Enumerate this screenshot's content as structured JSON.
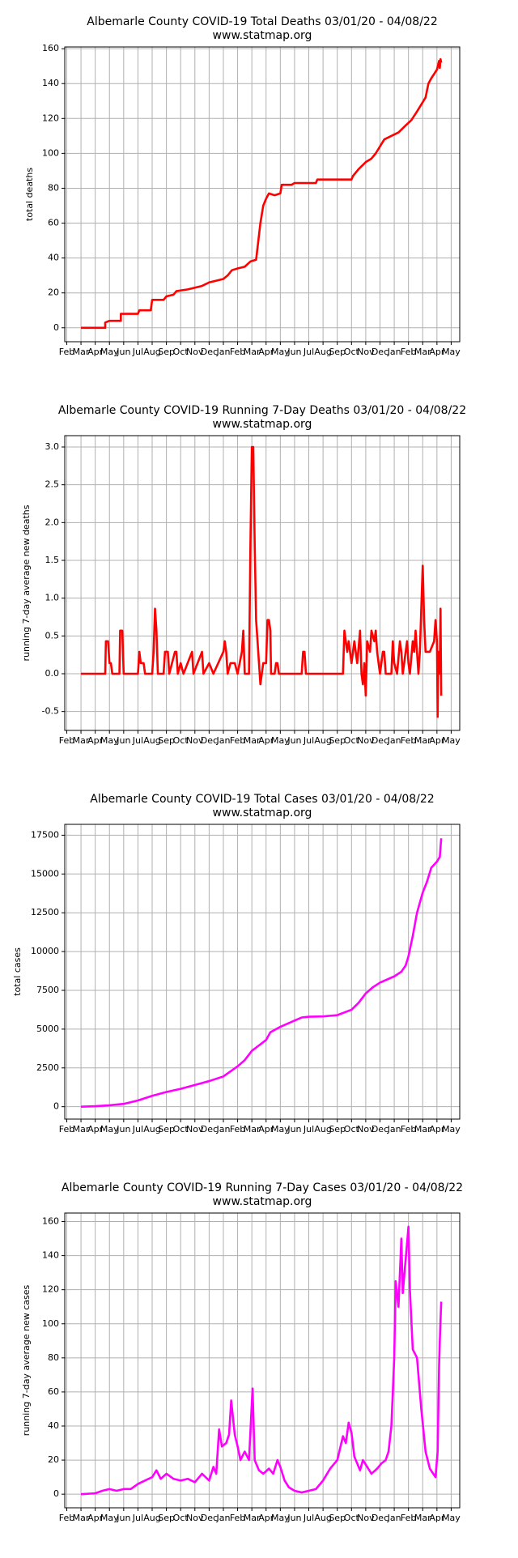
{
  "chart_data": [
    {
      "type": "line",
      "title": "Albemarle County COVID-19 Total Deaths 03/01/20 - 04/08/22",
      "subtitle": "www.statmap.org",
      "ylabel": "total deaths",
      "color": "#ff0000",
      "grid": true,
      "x": [
        1,
        2.7,
        2.7,
        3,
        3.8,
        3.8,
        5,
        5.1,
        5.9,
        6,
        6.8,
        7,
        7.5,
        7.7,
        8.5,
        9,
        9.5,
        10,
        10.5,
        11,
        11.3,
        11.6,
        12,
        12.5,
        12.9,
        13.3,
        13.6,
        13.8,
        14,
        14.2,
        14.6,
        15,
        15.1,
        15.8,
        16,
        17.5,
        17.6,
        19,
        20,
        20.1,
        20.5,
        21,
        21.4,
        21.7,
        22,
        22.3,
        22.8,
        23.3,
        23.8,
        24.2,
        24.6,
        24.9,
        25.2,
        25.4,
        25.6,
        26,
        26.15,
        26.2,
        26.25,
        26.3
      ],
      "values": [
        0,
        0,
        3,
        4,
        4,
        8,
        8,
        10,
        10,
        16,
        16,
        18,
        19,
        21,
        22,
        23,
        24,
        26,
        27,
        28,
        30,
        33,
        34,
        35,
        38,
        39,
        60,
        70,
        74,
        77,
        76,
        77,
        82,
        82,
        83,
        83,
        85,
        85,
        85,
        87,
        91,
        95,
        97,
        100,
        104,
        108,
        110,
        112,
        116,
        119,
        124,
        128,
        132,
        140,
        143,
        148,
        153,
        149,
        154,
        152
      ],
      "xlim": [
        -0.14,
        27.6
      ],
      "xticks": [
        {
          "value": 0,
          "label": "Feb"
        },
        {
          "value": 1,
          "label": "Mar"
        },
        {
          "value": 2,
          "label": "Apr"
        },
        {
          "value": 3,
          "label": "May"
        },
        {
          "value": 4,
          "label": "Jun"
        },
        {
          "value": 5,
          "label": "Jul"
        },
        {
          "value": 6,
          "label": "Aug"
        },
        {
          "value": 7,
          "label": "Sep"
        },
        {
          "value": 8,
          "label": "Oct"
        },
        {
          "value": 9,
          "label": "Nov"
        },
        {
          "value": 10,
          "label": "Dec"
        },
        {
          "value": 11,
          "label": "Jan"
        },
        {
          "value": 12,
          "label": "Feb"
        },
        {
          "value": 13,
          "label": "Mar"
        },
        {
          "value": 14,
          "label": "Apr"
        },
        {
          "value": 15,
          "label": "May"
        },
        {
          "value": 16,
          "label": "Jun"
        },
        {
          "value": 17,
          "label": "Jul"
        },
        {
          "value": 18,
          "label": "Aug"
        },
        {
          "value": 19,
          "label": "Sep"
        },
        {
          "value": 20,
          "label": "Oct"
        },
        {
          "value": 21,
          "label": "Nov"
        },
        {
          "value": 22,
          "label": "Dec"
        },
        {
          "value": 23,
          "label": "Jan"
        },
        {
          "value": 24,
          "label": "Feb"
        },
        {
          "value": 25,
          "label": "Mar"
        },
        {
          "value": 26,
          "label": "Apr"
        },
        {
          "value": 27,
          "label": "May"
        }
      ],
      "ylim": [
        -8,
        161
      ],
      "yticks": [
        0,
        20,
        40,
        60,
        80,
        100,
        120,
        140,
        160
      ]
    },
    {
      "type": "line",
      "title": "Albemarle County COVID-19 Running 7-Day Deaths 03/01/20 - 04/08/22",
      "subtitle": "www.statmap.org",
      "ylabel": "running 7-day average new deaths",
      "color": "#ff0000",
      "grid": true,
      "x": [
        1,
        2.7,
        2.75,
        2.9,
        3,
        3.1,
        3.2,
        3.7,
        3.75,
        3.9,
        4,
        5,
        5.1,
        5.2,
        5.4,
        5.5,
        6,
        6.1,
        6.2,
        6.3,
        6.4,
        6.8,
        6.9,
        7.1,
        7.2,
        7.6,
        7.7,
        7.8,
        8,
        8.2,
        8.8,
        8.9,
        9.5,
        9.6,
        10,
        10.3,
        11,
        11.1,
        11.2,
        11.3,
        11.5,
        11.8,
        12,
        12.3,
        12.4,
        12.5,
        12.8,
        12.9,
        13,
        13.1,
        13.2,
        13.3,
        13.4,
        13.6,
        13.8,
        14,
        14.1,
        14.2,
        14.3,
        14.35,
        14.6,
        14.7,
        14.8,
        14.9,
        16.5,
        16.6,
        16.7,
        16.8,
        19.4,
        19.5,
        19.7,
        19.8,
        20,
        20.2,
        20.4,
        20.6,
        20.7,
        20.8,
        20.9,
        21,
        21.1,
        21.3,
        21.4,
        21.6,
        21.7,
        21.8,
        21.9,
        22,
        22.2,
        22.3,
        22.4,
        22.8,
        22.9,
        23,
        23.2,
        23.4,
        23.5,
        23.6,
        23.9,
        24,
        24.1,
        24.3,
        24.4,
        24.5,
        24.6,
        24.7,
        24.8,
        24.9,
        25,
        25.1,
        25.2,
        25.5,
        25.8,
        25.9,
        26,
        26.05,
        26.1,
        26.2,
        26.25,
        26.3
      ],
      "values": [
        0,
        0,
        0.43,
        0.43,
        0.14,
        0.14,
        0,
        0,
        0.57,
        0.57,
        0,
        0,
        0.29,
        0.14,
        0.14,
        0,
        0,
        0.29,
        0.86,
        0.57,
        0,
        0,
        0.29,
        0.29,
        0,
        0.29,
        0.29,
        0,
        0.14,
        0,
        0.29,
        0,
        0.29,
        0,
        0.14,
        0,
        0.29,
        0.43,
        0.29,
        0,
        0.14,
        0.14,
        0,
        0.29,
        0.57,
        0,
        0,
        1.71,
        3,
        3,
        1.71,
        0.71,
        0.43,
        -0.14,
        0.14,
        0.14,
        0.71,
        0.71,
        0.57,
        0,
        0,
        0.14,
        0.14,
        0,
        0,
        0.29,
        0.29,
        0,
        0,
        0.57,
        0.29,
        0.43,
        0.14,
        0.43,
        0.14,
        0.57,
        0,
        -0.14,
        0.14,
        -0.29,
        0.43,
        0.29,
        0.57,
        0.43,
        0.57,
        0.29,
        0.14,
        0,
        0.29,
        0.29,
        0,
        0,
        0.43,
        0.14,
        0,
        0.43,
        0.29,
        0,
        0.43,
        0.14,
        0,
        0.43,
        0.29,
        0.57,
        0.29,
        0,
        0.29,
        0.86,
        1.43,
        0.71,
        0.29,
        0.29,
        0.43,
        0.71,
        0.43,
        -0.57,
        0.29,
        0,
        0.86,
        -0.29
      ],
      "xlim": [
        -0.14,
        27.6
      ],
      "xticks": [
        {
          "value": 0,
          "label": "Feb"
        },
        {
          "value": 1,
          "label": "Mar"
        },
        {
          "value": 2,
          "label": "Apr"
        },
        {
          "value": 3,
          "label": "May"
        },
        {
          "value": 4,
          "label": "Jun"
        },
        {
          "value": 5,
          "label": "Jul"
        },
        {
          "value": 6,
          "label": "Aug"
        },
        {
          "value": 7,
          "label": "Sep"
        },
        {
          "value": 8,
          "label": "Oct"
        },
        {
          "value": 9,
          "label": "Nov"
        },
        {
          "value": 10,
          "label": "Dec"
        },
        {
          "value": 11,
          "label": "Jan"
        },
        {
          "value": 12,
          "label": "Feb"
        },
        {
          "value": 13,
          "label": "Mar"
        },
        {
          "value": 14,
          "label": "Apr"
        },
        {
          "value": 15,
          "label": "May"
        },
        {
          "value": 16,
          "label": "Jun"
        },
        {
          "value": 17,
          "label": "Jul"
        },
        {
          "value": 18,
          "label": "Aug"
        },
        {
          "value": 19,
          "label": "Sep"
        },
        {
          "value": 20,
          "label": "Oct"
        },
        {
          "value": 21,
          "label": "Nov"
        },
        {
          "value": 22,
          "label": "Dec"
        },
        {
          "value": 23,
          "label": "Jan"
        },
        {
          "value": 24,
          "label": "Feb"
        },
        {
          "value": 25,
          "label": "Mar"
        },
        {
          "value": 26,
          "label": "Apr"
        },
        {
          "value": 27,
          "label": "May"
        }
      ],
      "ylim": [
        -0.75,
        3.15
      ],
      "yticks": [
        {
          "value": -0.5,
          "label": "-0.5"
        },
        {
          "value": 0,
          "label": "0.0"
        },
        {
          "value": 0.5,
          "label": "0.5"
        },
        {
          "value": 1,
          "label": "1.0"
        },
        {
          "value": 1.5,
          "label": "1.5"
        },
        {
          "value": 2,
          "label": "2.0"
        },
        {
          "value": 2.5,
          "label": "2.5"
        },
        {
          "value": 3,
          "label": "3.0"
        }
      ]
    },
    {
      "type": "line",
      "title": "Albemarle County COVID-19 Total Cases 03/01/20 - 04/08/22",
      "subtitle": "www.statmap.org",
      "ylabel": "total cases",
      "color": "#ff00ff",
      "grid": true,
      "x": [
        1,
        2,
        3,
        4,
        5,
        6,
        7,
        8,
        9,
        10,
        11,
        12,
        12.5,
        13,
        13.5,
        14,
        14.3,
        15,
        16,
        16.5,
        17,
        18,
        19,
        20,
        20.5,
        21,
        21.5,
        22,
        23,
        23.5,
        23.8,
        24,
        24.3,
        24.6,
        25,
        25.3,
        25.6,
        26,
        26.2,
        26.3
      ],
      "values": [
        0,
        30,
        90,
        180,
        400,
        700,
        950,
        1150,
        1400,
        1650,
        1950,
        2600,
        3000,
        3600,
        3950,
        4300,
        4800,
        5150,
        5550,
        5750,
        5800,
        5820,
        5900,
        6250,
        6700,
        7300,
        7700,
        8000,
        8400,
        8700,
        9100,
        9700,
        11000,
        12500,
        13800,
        14500,
        15400,
        15800,
        16100,
        17300
      ],
      "xlim": [
        -0.14,
        27.6
      ],
      "xticks": [
        {
          "value": 0,
          "label": "Feb"
        },
        {
          "value": 1,
          "label": "Mar"
        },
        {
          "value": 2,
          "label": "Apr"
        },
        {
          "value": 3,
          "label": "May"
        },
        {
          "value": 4,
          "label": "Jun"
        },
        {
          "value": 5,
          "label": "Jul"
        },
        {
          "value": 6,
          "label": "Aug"
        },
        {
          "value": 7,
          "label": "Sep"
        },
        {
          "value": 8,
          "label": "Oct"
        },
        {
          "value": 9,
          "label": "Nov"
        },
        {
          "value": 10,
          "label": "Dec"
        },
        {
          "value": 11,
          "label": "Jan"
        },
        {
          "value": 12,
          "label": "Feb"
        },
        {
          "value": 13,
          "label": "Mar"
        },
        {
          "value": 14,
          "label": "Apr"
        },
        {
          "value": 15,
          "label": "May"
        },
        {
          "value": 16,
          "label": "Jun"
        },
        {
          "value": 17,
          "label": "Jul"
        },
        {
          "value": 18,
          "label": "Aug"
        },
        {
          "value": 19,
          "label": "Sep"
        },
        {
          "value": 20,
          "label": "Oct"
        },
        {
          "value": 21,
          "label": "Nov"
        },
        {
          "value": 22,
          "label": "Dec"
        },
        {
          "value": 23,
          "label": "Jan"
        },
        {
          "value": 24,
          "label": "Feb"
        },
        {
          "value": 25,
          "label": "Mar"
        },
        {
          "value": 26,
          "label": "Apr"
        },
        {
          "value": 27,
          "label": "May"
        }
      ],
      "ylim": [
        -800,
        18200
      ],
      "yticks": [
        0,
        2500,
        5000,
        7500,
        10000,
        12500,
        15000,
        17500
      ]
    },
    {
      "type": "line",
      "title": "Albemarle County COVID-19 Running 7-Day Cases 03/01/20 - 04/08/22",
      "subtitle": "www.statmap.org",
      "ylabel": "running 7-day average new cases",
      "color": "#ff00ff",
      "grid": true,
      "x": [
        1,
        2,
        2.5,
        3,
        3.5,
        4,
        4.5,
        5,
        5.5,
        6,
        6.3,
        6.6,
        7,
        7.5,
        8,
        8.5,
        9,
        9.5,
        10,
        10.3,
        10.5,
        10.7,
        10.9,
        11.2,
        11.4,
        11.55,
        11.8,
        12,
        12.2,
        12.5,
        12.8,
        13.05,
        13.2,
        13.5,
        13.8,
        14.2,
        14.5,
        14.8,
        15,
        15.3,
        15.6,
        16,
        16.5,
        17,
        17.5,
        18,
        18.5,
        19,
        19.4,
        19.6,
        19.8,
        20,
        20.2,
        20.4,
        20.6,
        20.8,
        21.1,
        21.4,
        21.8,
        22.1,
        22.4,
        22.6,
        22.8,
        23,
        23.1,
        23.3,
        23.5,
        23.6,
        24,
        24.1,
        24.3,
        24.6,
        24.9,
        25.2,
        25.5,
        25.9,
        26.05,
        26.15,
        26.2,
        26.3
      ],
      "values": [
        0,
        0.5,
        2,
        3,
        2,
        3,
        3,
        6,
        8,
        10,
        14,
        9,
        12,
        9,
        8,
        9,
        7,
        12,
        8,
        16,
        12,
        38,
        28,
        30,
        35,
        55,
        35,
        28,
        20,
        25,
        20,
        62,
        20,
        14,
        12,
        15,
        12,
        20,
        16,
        8,
        4,
        2,
        1,
        2,
        3,
        8,
        15,
        20,
        34,
        30,
        42,
        36,
        22,
        18,
        14,
        20,
        16,
        12,
        15,
        18,
        20,
        25,
        40,
        80,
        125,
        110,
        150,
        118,
        157,
        120,
        85,
        80,
        50,
        25,
        15,
        10,
        25,
        75,
        90,
        113
      ],
      "xlim": [
        -0.14,
        27.6
      ],
      "xticks": [
        {
          "value": 0,
          "label": "Feb"
        },
        {
          "value": 1,
          "label": "Mar"
        },
        {
          "value": 2,
          "label": "Apr"
        },
        {
          "value": 3,
          "label": "May"
        },
        {
          "value": 4,
          "label": "Jun"
        },
        {
          "value": 5,
          "label": "Jul"
        },
        {
          "value": 6,
          "label": "Aug"
        },
        {
          "value": 7,
          "label": "Sep"
        },
        {
          "value": 8,
          "label": "Oct"
        },
        {
          "value": 9,
          "label": "Nov"
        },
        {
          "value": 10,
          "label": "Dec"
        },
        {
          "value": 11,
          "label": "Jan"
        },
        {
          "value": 12,
          "label": "Feb"
        },
        {
          "value": 13,
          "label": "Mar"
        },
        {
          "value": 14,
          "label": "Apr"
        },
        {
          "value": 15,
          "label": "May"
        },
        {
          "value": 16,
          "label": "Jun"
        },
        {
          "value": 17,
          "label": "Jul"
        },
        {
          "value": 18,
          "label": "Aug"
        },
        {
          "value": 19,
          "label": "Sep"
        },
        {
          "value": 20,
          "label": "Oct"
        },
        {
          "value": 21,
          "label": "Nov"
        },
        {
          "value": 22,
          "label": "Dec"
        },
        {
          "value": 23,
          "label": "Jan"
        },
        {
          "value": 24,
          "label": "Feb"
        },
        {
          "value": 25,
          "label": "Mar"
        },
        {
          "value": 26,
          "label": "Apr"
        },
        {
          "value": 27,
          "label": "May"
        }
      ],
      "ylim": [
        -8,
        165
      ],
      "yticks": [
        0,
        20,
        40,
        60,
        80,
        100,
        120,
        140,
        160
      ]
    }
  ]
}
